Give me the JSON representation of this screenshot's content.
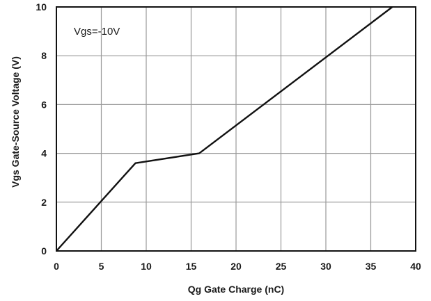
{
  "chart_data": {
    "type": "line",
    "title": "",
    "xlabel": "Qg Gate Charge (nC)",
    "ylabel": "Vgs Gate-Source Voltage (V)",
    "xlim": [
      0,
      40
    ],
    "ylim": [
      0,
      10
    ],
    "xticks": [
      0,
      5,
      10,
      15,
      20,
      25,
      30,
      35,
      40
    ],
    "yticks": [
      0,
      2,
      4,
      6,
      8,
      10
    ],
    "grid": true,
    "legend": "none",
    "annotation": "Vgs=-10V",
    "series": [
      {
        "x": [
          0,
          8.8,
          15.9,
          37.4
        ],
        "y": [
          0,
          3.6,
          4.0,
          10.0
        ]
      }
    ],
    "colors": {
      "line": "#111111",
      "grid": "#9a9a9a",
      "frame": "#111111"
    }
  }
}
